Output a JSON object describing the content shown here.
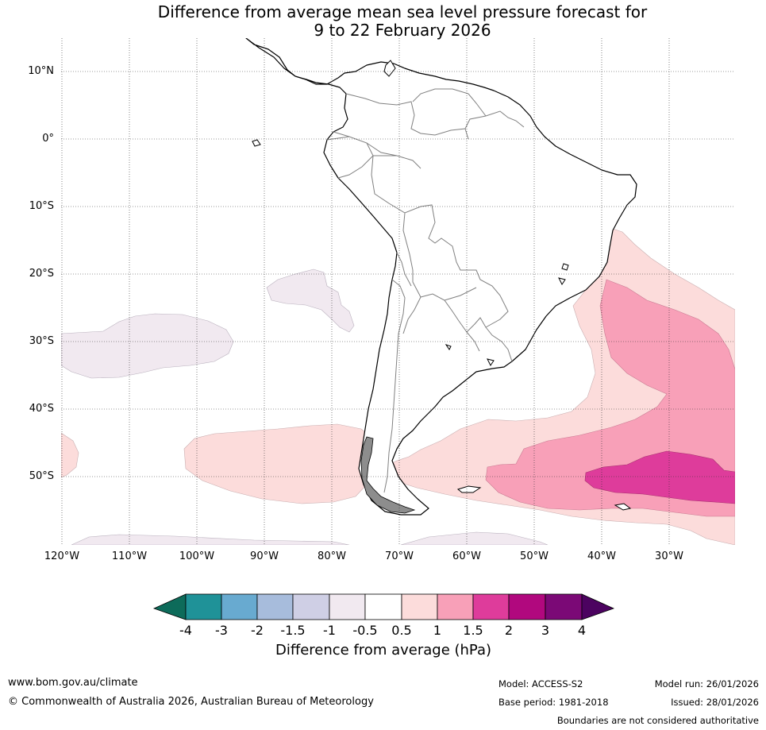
{
  "title": {
    "line1": "Difference from average mean sea level pressure forecast for",
    "line2": "9 to 22 February 2026"
  },
  "map": {
    "lat_labels": [
      "10°N",
      "0°",
      "10°S",
      "20°S",
      "30°S",
      "40°S",
      "50°S"
    ],
    "lon_labels": [
      "120°W",
      "110°W",
      "100°W",
      "90°W",
      "80°W",
      "70°W",
      "60°W",
      "50°W",
      "40°W",
      "30°W"
    ],
    "land_color": "#ffffff",
    "coast_color": "#000000",
    "border_color": "#808080"
  },
  "legend": {
    "ticks": [
      "-4",
      "-3",
      "-2",
      "-1.5",
      "-1",
      "-0.5",
      "0.5",
      "1",
      "1.5",
      "2",
      "3",
      "4"
    ],
    "colors": [
      "#0d6b5a",
      "#1f9298",
      "#68aad0",
      "#a7bcdc",
      "#cfcfe5",
      "#f1e9f0",
      "#ffffff",
      "#fcdcdb",
      "#f8a0b8",
      "#de3c9b",
      "#b1087e",
      "#7b0976",
      "#4c0360"
    ],
    "title": "Difference from average (hPa)"
  },
  "footer": {
    "website": "www.bom.gov.au/climate",
    "copyright": "© Commonwealth of Australia 2026, Australian Bureau of Meteorology",
    "model": "Model: ACCESS-S2",
    "base_period": "Base period: 1981-2018",
    "model_run": "Model run: 26/01/2026",
    "issued": "Issued: 28/01/2026",
    "disclaimer": "Boundaries are not considered authoritative"
  }
}
